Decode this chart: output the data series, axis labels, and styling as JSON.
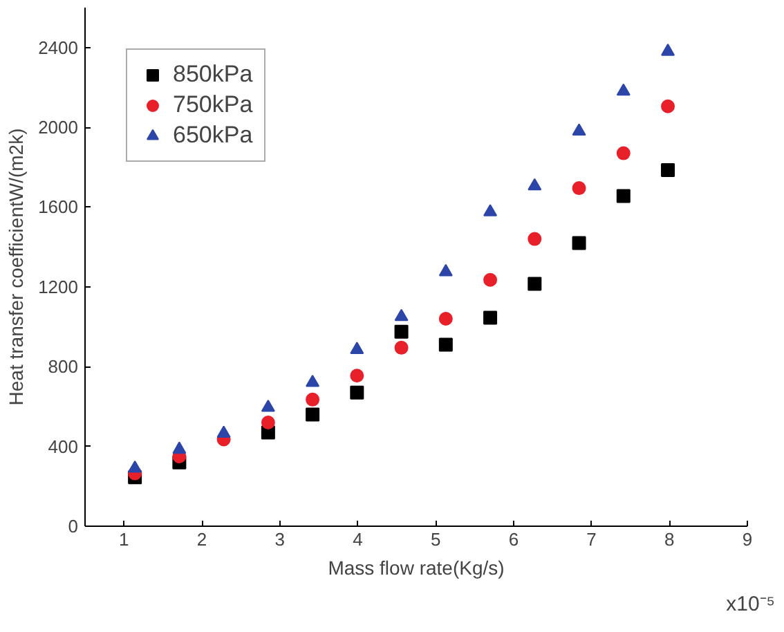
{
  "chart_data": {
    "type": "scatter",
    "xlabel": "Mass flow rate(Kg/s)",
    "ylabel": "Heat transfer coefficientW/(m2k)",
    "annotations": [
      "x10⁻⁵"
    ],
    "x": [
      1.14,
      1.71,
      2.28,
      2.85,
      3.42,
      3.99,
      4.56,
      5.13,
      5.7,
      6.27,
      6.84,
      7.41,
      7.98
    ],
    "series": [
      {
        "name": "850kPa",
        "color": "#000000",
        "marker": "square",
        "values": [
          245,
          320,
          null,
          470,
          560,
          670,
          975,
          910,
          1045,
          1215,
          1420,
          1655,
          1785
        ]
      },
      {
        "name": "750kPa",
        "color": "#e8202a",
        "marker": "circle",
        "values": [
          265,
          350,
          435,
          520,
          635,
          755,
          895,
          1040,
          1235,
          1440,
          1695,
          1870,
          2105
        ]
      },
      {
        "name": "650kPa",
        "color": "#2c45a8",
        "marker": "triangle",
        "values": [
          290,
          385,
          465,
          595,
          720,
          885,
          1050,
          1275,
          1575,
          1705,
          1980,
          2180,
          2380
        ]
      }
    ],
    "xlim": [
      0.5,
      9
    ],
    "ylim": [
      0,
      2600
    ],
    "xticks": [
      1,
      2,
      3,
      4,
      5,
      6,
      7,
      8,
      9
    ],
    "yticks": [
      0,
      400,
      800,
      1200,
      1600,
      2000,
      2400
    ],
    "grid": false,
    "legend": "top left"
  }
}
